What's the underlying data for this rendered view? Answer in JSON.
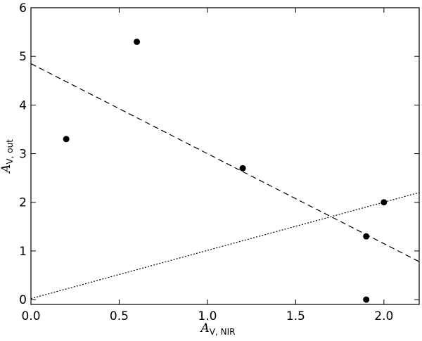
{
  "chart_data": {
    "type": "scatter",
    "xlim": [
      0.0,
      2.2
    ],
    "ylim": [
      -0.1,
      6.0
    ],
    "xticks": [
      0.0,
      0.5,
      1.0,
      1.5,
      2.0
    ],
    "xtick_labels": [
      "0.0",
      "0.5",
      "1.0",
      "1.5",
      "2.0"
    ],
    "yticks": [
      0,
      1,
      2,
      3,
      4,
      5,
      6
    ],
    "ytick_labels": [
      "0",
      "1",
      "2",
      "3",
      "4",
      "5",
      "6"
    ],
    "xlabel": {
      "main": "A",
      "sub": "V, NIR"
    },
    "ylabel": {
      "main": "A",
      "sub": "V, out"
    },
    "grid": false,
    "points": {
      "x": [
        0.2,
        0.6,
        1.2,
        1.9,
        1.9,
        2.0
      ],
      "y": [
        3.3,
        5.3,
        2.7,
        1.3,
        0.0,
        2.0
      ],
      "color": "#000000"
    },
    "lines": [
      {
        "style": "dashed",
        "x": [
          0.0,
          2.2
        ],
        "y": [
          4.85,
          0.78
        ],
        "color": "#000000"
      },
      {
        "style": "dotted",
        "x": [
          0.0,
          2.2
        ],
        "y": [
          0.02,
          2.2
        ],
        "color": "#000000"
      }
    ]
  }
}
